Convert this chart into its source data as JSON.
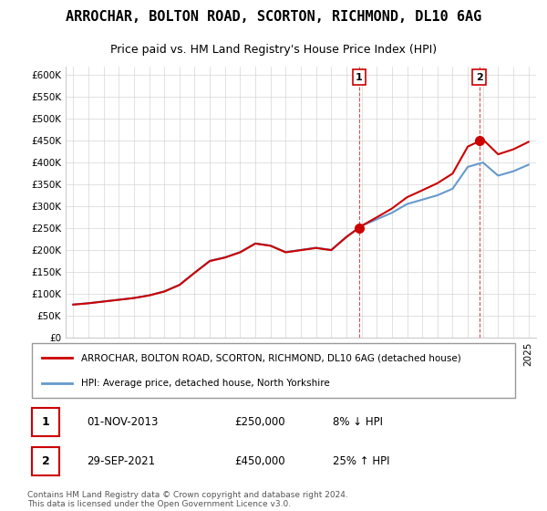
{
  "title": "ARROCHAR, BOLTON ROAD, SCORTON, RICHMOND, DL10 6AG",
  "subtitle": "Price paid vs. HM Land Registry's House Price Index (HPI)",
  "legend_label1": "ARROCHAR, BOLTON ROAD, SCORTON, RICHMOND, DL10 6AG (detached house)",
  "legend_label2": "HPI: Average price, detached house, North Yorkshire",
  "sale1_label": "1",
  "sale1_date": "01-NOV-2013",
  "sale1_price": "£250,000",
  "sale1_hpi": "8% ↓ HPI",
  "sale2_label": "2",
  "sale2_date": "29-SEP-2021",
  "sale2_price": "£450,000",
  "sale2_hpi": "25% ↑ HPI",
  "footer": "Contains HM Land Registry data © Crown copyright and database right 2024.\nThis data is licensed under the Open Government Licence v3.0.",
  "line_color_red": "#cc0000",
  "line_color_blue": "#6699cc",
  "marker_color_red": "#cc0000",
  "background_color": "#ffffff",
  "grid_color": "#cccccc",
  "sale1_x": 2013.83,
  "sale2_x": 2021.75,
  "ylim_min": 0,
  "ylim_max": 620000,
  "xlim_min": 1994.5,
  "xlim_max": 2025.5,
  "hpi_years": [
    1995,
    1996,
    1997,
    1998,
    1999,
    2000,
    2001,
    2002,
    2003,
    2004,
    2005,
    2006,
    2007,
    2008,
    2009,
    2010,
    2011,
    2012,
    2013,
    2014,
    2015,
    2016,
    2017,
    2018,
    2019,
    2020,
    2021,
    2022,
    2023,
    2024,
    2025
  ],
  "hpi_values": [
    75000,
    78000,
    82000,
    86000,
    90000,
    96000,
    105000,
    120000,
    148000,
    175000,
    183000,
    195000,
    215000,
    210000,
    195000,
    200000,
    205000,
    200000,
    230000,
    255000,
    270000,
    285000,
    305000,
    315000,
    325000,
    340000,
    390000,
    400000,
    370000,
    380000,
    395000
  ],
  "price_years": [
    2013.83,
    2021.75
  ],
  "price_values": [
    250000,
    450000
  ],
  "vline1_x": 2013.83,
  "vline2_x": 2021.75
}
